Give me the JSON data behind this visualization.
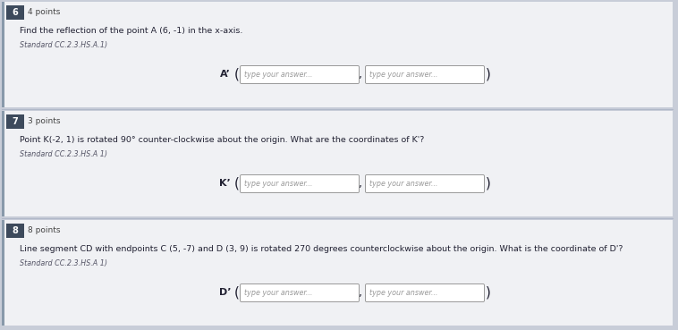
{
  "background_color": "#c8cdd8",
  "questions": [
    {
      "number": "6",
      "points": "4 points",
      "question": "Find the reflection of the point A (6, -1) in the x-axis.",
      "standard": "Standard CC.2.3.HS.A.1)",
      "label": "A’",
      "box_placeholder1": "type your answer...",
      "box_placeholder2": "type your answer..."
    },
    {
      "number": "7",
      "points": "3 points",
      "question": "Point K(-2, 1) is rotated 90° counter-clockwise about the origin. What are the coordinates of K'?",
      "standard": "Standard CC.2.3.HS.A 1)",
      "label": "K’",
      "box_placeholder1": "type your answer...",
      "box_placeholder2": "type your answer..."
    },
    {
      "number": "8",
      "points": "8 points",
      "question": "Line segment CD with endpoints C (5, -7) and D (3, 9) is rotated 270 degrees counterclockwise about the origin. What is the coordinate of D'?",
      "standard": "Standard CC.2.3.HS.A 1)",
      "label": "D’",
      "box_placeholder1": "type your answer...",
      "box_placeholder2": "type your answer..."
    }
  ],
  "section_bg_color": "#f0f1f4",
  "number_box_color": "#3d4a5c",
  "number_text_color": "#ffffff",
  "box_bg_color": "#ffffff",
  "box_border_color": "#999999",
  "text_color": "#222233",
  "standard_color": "#555566",
  "placeholder_color": "#999999",
  "label_color": "#222233",
  "points_color": "#444444",
  "left_bar_color": "#8899aa",
  "divider_color": "#b0b8c8"
}
